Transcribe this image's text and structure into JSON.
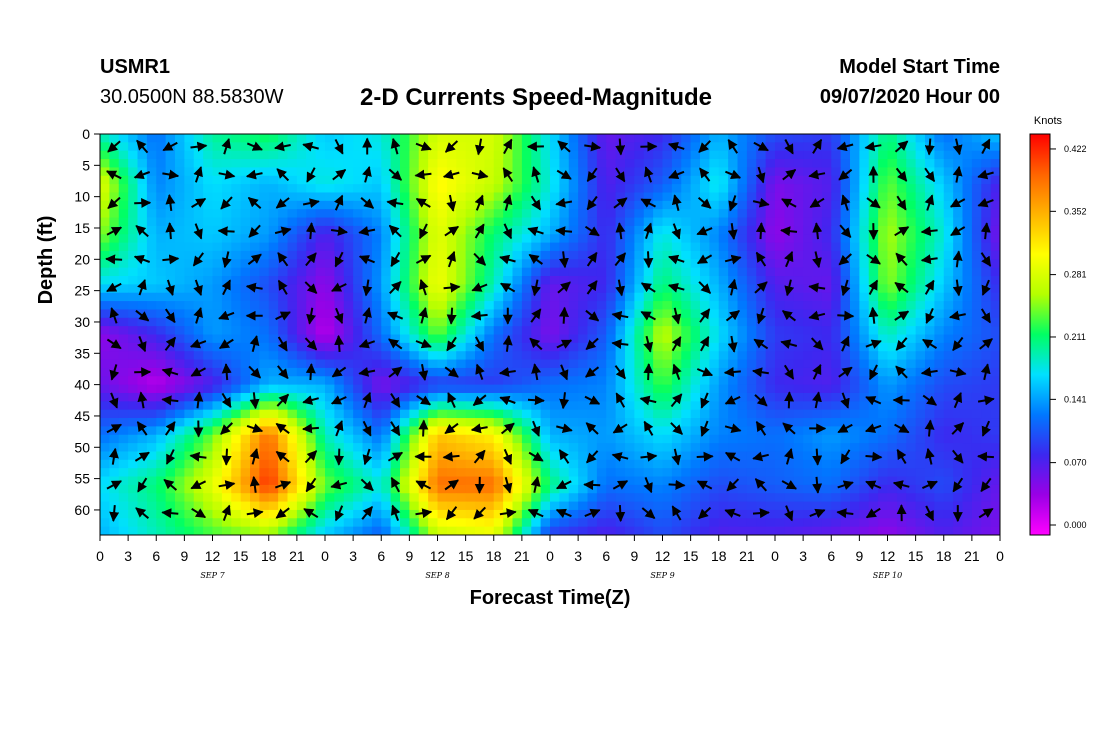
{
  "header": {
    "station": "USMR1",
    "coords": "30.0500N 88.5830W",
    "title": "2-D Currents Speed-Magnitude",
    "model_start_label": "Model Start Time",
    "model_start_value": "09/07/2020 Hour 00"
  },
  "chart_data": {
    "type": "heatmap",
    "title": "2-D Currents Speed-Magnitude",
    "xlabel": "Forecast Time(Z)",
    "ylabel": "Depth (ft)",
    "x_tick_labels": [
      "0",
      "3",
      "6",
      "9",
      "12",
      "15",
      "18",
      "21",
      "0",
      "3",
      "6",
      "9",
      "12",
      "15",
      "18",
      "21",
      "0",
      "3",
      "6",
      "9",
      "12",
      "15",
      "18",
      "21",
      "0",
      "3",
      "6",
      "9",
      "12",
      "15",
      "18",
      "21",
      "0"
    ],
    "x_range_hours": [
      0,
      96
    ],
    "day_labels": [
      {
        "label": "SEP 7",
        "hour": 12
      },
      {
        "label": "SEP 8",
        "hour": 36
      },
      {
        "label": "SEP 9",
        "hour": 60
      },
      {
        "label": "SEP 10",
        "hour": 84
      }
    ],
    "y_tick_labels": [
      "0",
      "5",
      "10",
      "15",
      "20",
      "25",
      "30",
      "35",
      "40",
      "45",
      "50",
      "55",
      "60"
    ],
    "y_range_ft": [
      0,
      64
    ],
    "colorbar": {
      "unit_label": "Knots",
      "tick_labels": [
        "0.422",
        "0.352",
        "0.281",
        "0.211",
        "0.141",
        "0.070",
        "0.000"
      ],
      "range": [
        0.0,
        0.45
      ],
      "colors": [
        "#ff00ff",
        "#9a00e6",
        "#3c28f0",
        "#0078ff",
        "#00e0ff",
        "#00ff64",
        "#b4ff00",
        "#ffff00",
        "#ffb400",
        "#ff6400",
        "#ff0000"
      ]
    },
    "speed_grid": {
      "hours": [
        0,
        6,
        12,
        18,
        24,
        30,
        36,
        42,
        48,
        54,
        60,
        66,
        72,
        78,
        84,
        90,
        96
      ],
      "depths_ft": [
        0,
        8,
        16,
        24,
        32,
        40,
        48,
        56,
        64
      ],
      "values_knots": [
        [
          0.2,
          0.13,
          0.21,
          0.23,
          0.17,
          0.19,
          0.29,
          0.29,
          0.18,
          0.07,
          0.09,
          0.16,
          0.11,
          0.1,
          0.22,
          0.13,
          0.17
        ],
        [
          0.3,
          0.14,
          0.18,
          0.16,
          0.19,
          0.17,
          0.32,
          0.28,
          0.19,
          0.08,
          0.12,
          0.19,
          0.06,
          0.08,
          0.25,
          0.17,
          0.08
        ],
        [
          0.26,
          0.16,
          0.17,
          0.15,
          0.08,
          0.14,
          0.3,
          0.22,
          0.16,
          0.09,
          0.19,
          0.14,
          0.05,
          0.09,
          0.27,
          0.19,
          0.06
        ],
        [
          0.18,
          0.17,
          0.15,
          0.11,
          0.05,
          0.15,
          0.31,
          0.2,
          0.07,
          0.09,
          0.22,
          0.16,
          0.08,
          0.07,
          0.26,
          0.17,
          0.09
        ],
        [
          0.05,
          0.09,
          0.15,
          0.13,
          0.03,
          0.13,
          0.25,
          0.13,
          0.06,
          0.12,
          0.28,
          0.18,
          0.1,
          0.09,
          0.2,
          0.14,
          0.11
        ],
        [
          0.07,
          0.03,
          0.08,
          0.16,
          0.16,
          0.06,
          0.1,
          0.1,
          0.13,
          0.14,
          0.24,
          0.15,
          0.09,
          0.08,
          0.15,
          0.11,
          0.1
        ],
        [
          0.13,
          0.16,
          0.25,
          0.4,
          0.2,
          0.13,
          0.35,
          0.32,
          0.16,
          0.15,
          0.18,
          0.14,
          0.13,
          0.15,
          0.13,
          0.09,
          0.1
        ],
        [
          0.18,
          0.22,
          0.3,
          0.43,
          0.25,
          0.19,
          0.4,
          0.4,
          0.22,
          0.13,
          0.14,
          0.11,
          0.12,
          0.13,
          0.09,
          0.11,
          0.07
        ],
        [
          0.16,
          0.2,
          0.24,
          0.26,
          0.17,
          0.12,
          0.28,
          0.3,
          0.1,
          0.08,
          0.11,
          0.08,
          0.08,
          0.07,
          0.05,
          0.08,
          0.06
        ]
      ]
    },
    "vectors_note": "Black arrows indicate current direction at each time/depth sample"
  }
}
